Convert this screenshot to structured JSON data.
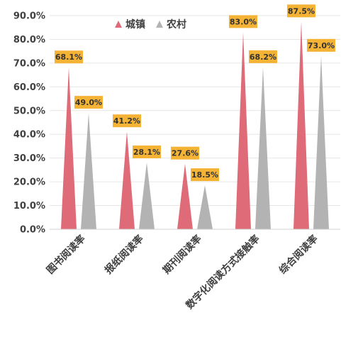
{
  "chart_data": {
    "type": "bar",
    "bar_shape": "triangle",
    "categories": [
      "图书阅读率",
      "报纸阅读率",
      "期刊阅读率",
      "数字化阅读方式接触率",
      "综合阅读率"
    ],
    "series": [
      {
        "name": "城镇",
        "values": [
          68.1,
          41.2,
          27.6,
          83.0,
          87.5
        ],
        "labels": [
          "68.1%",
          "41.2%",
          "27.6%",
          "83.0%",
          "87.5%"
        ],
        "color": "#e06b78"
      },
      {
        "name": "农村",
        "values": [
          49.0,
          28.1,
          18.5,
          68.2,
          73.0
        ],
        "labels": [
          "49.0%",
          "28.1%",
          "18.5%",
          "68.2%",
          "73.0%"
        ],
        "color": "#b3b3b3"
      }
    ],
    "yticks": [
      "0.0%",
      "10.0%",
      "20.0%",
      "30.0%",
      "40.0%",
      "50.0%",
      "60.0%",
      "70.0%",
      "80.0%",
      "90.0%"
    ],
    "ylim": [
      0,
      90
    ],
    "grid": true,
    "legend_position": "top-center",
    "data_label_bg": "#f5b335",
    "title": "",
    "xlabel": "",
    "ylabel": ""
  }
}
